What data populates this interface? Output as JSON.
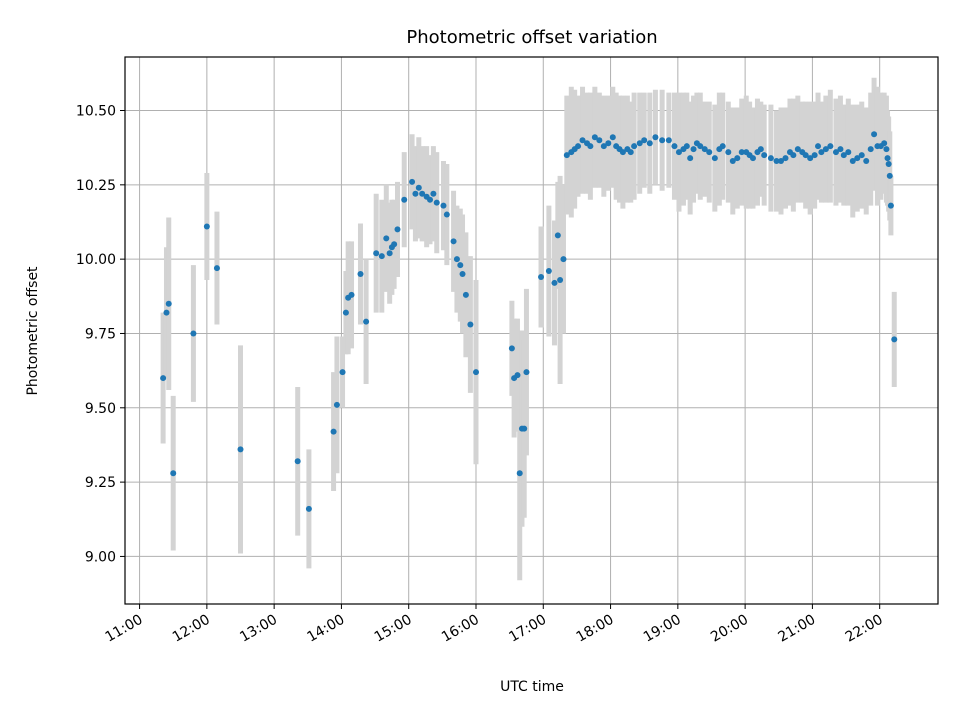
{
  "chart_data": {
    "type": "scatter",
    "title": "Photometric offset variation",
    "xlabel": "UTC time",
    "ylabel": "Photometric offset",
    "xlim": [
      "10:47",
      "22:52"
    ],
    "ylim": [
      8.84,
      10.68
    ],
    "x_ticks": [
      "11:00",
      "12:00",
      "13:00",
      "14:00",
      "15:00",
      "16:00",
      "17:00",
      "18:00",
      "19:00",
      "20:00",
      "21:00",
      "22:00"
    ],
    "y_ticks": [
      "9.00",
      "9.25",
      "9.50",
      "9.75",
      "10.00",
      "10.25",
      "10.50"
    ],
    "grid": true,
    "marker_color": "#1f77b4",
    "errorbar_color": "#d3d3d3",
    "x": [
      "11:21",
      "11:24",
      "11:26",
      "11:30",
      "11:48",
      "12:00",
      "12:09",
      "12:30",
      "13:21",
      "13:31",
      "13:53",
      "13:56",
      "14:01",
      "14:04",
      "14:06",
      "14:09",
      "14:17",
      "14:22",
      "14:31",
      "14:36",
      "14:40",
      "14:43",
      "14:45",
      "14:47",
      "14:50",
      "14:56",
      "15:03",
      "15:06",
      "15:09",
      "15:12",
      "15:16",
      "15:19",
      "15:22",
      "15:25",
      "15:31",
      "15:34",
      "15:40",
      "15:43",
      "15:46",
      "15:48",
      "15:51",
      "15:55",
      "16:00",
      "16:32",
      "16:34",
      "16:37",
      "16:39",
      "16:41",
      "16:43",
      "16:45",
      "16:58",
      "17:05",
      "17:10",
      "17:13",
      "17:15",
      "17:18",
      "17:21",
      "17:25",
      "17:28",
      "17:31",
      "17:35",
      "17:39",
      "17:42",
      "17:46",
      "17:50",
      "17:54",
      "17:58",
      "18:02",
      "18:05",
      "18:08",
      "18:11",
      "18:15",
      "18:18",
      "18:21",
      "18:26",
      "18:30",
      "18:35",
      "18:40",
      "18:46",
      "18:52",
      "18:57",
      "19:01",
      "19:05",
      "19:08",
      "19:11",
      "19:14",
      "19:17",
      "19:20",
      "19:24",
      "19:28",
      "19:33",
      "19:37",
      "19:40",
      "19:45",
      "19:49",
      "19:53",
      "19:57",
      "20:01",
      "20:04",
      "20:07",
      "20:11",
      "20:14",
      "20:17",
      "20:23",
      "20:28",
      "20:32",
      "20:36",
      "20:40",
      "20:43",
      "20:47",
      "20:51",
      "20:54",
      "20:58",
      "21:02",
      "21:05",
      "21:08",
      "21:12",
      "21:16",
      "21:21",
      "21:25",
      "21:28",
      "21:32",
      "21:36",
      "21:40",
      "21:44",
      "21:48",
      "21:52",
      "21:55",
      "21:58",
      "22:01",
      "22:04",
      "22:06",
      "22:07",
      "22:08",
      "22:09",
      "22:10",
      "22:13"
    ],
    "values": [
      9.6,
      9.82,
      9.85,
      9.28,
      9.75,
      10.11,
      9.97,
      9.36,
      9.32,
      9.16,
      9.42,
      9.51,
      9.62,
      9.82,
      9.87,
      9.88,
      9.95,
      9.79,
      10.02,
      10.01,
      10.07,
      10.02,
      10.04,
      10.05,
      10.1,
      10.2,
      10.26,
      10.22,
      10.24,
      10.22,
      10.21,
      10.2,
      10.22,
      10.19,
      10.18,
      10.15,
      10.06,
      10.0,
      9.98,
      9.95,
      9.88,
      9.78,
      9.62,
      9.7,
      9.6,
      9.61,
      9.28,
      9.43,
      9.43,
      9.62,
      9.94,
      9.96,
      9.92,
      10.08,
      9.93,
      10.0,
      10.35,
      10.36,
      10.37,
      10.38,
      10.4,
      10.39,
      10.38,
      10.41,
      10.4,
      10.38,
      10.39,
      10.41,
      10.38,
      10.37,
      10.36,
      10.37,
      10.36,
      10.38,
      10.39,
      10.4,
      10.39,
      10.41,
      10.4,
      10.4,
      10.38,
      10.36,
      10.37,
      10.38,
      10.34,
      10.37,
      10.39,
      10.38,
      10.37,
      10.36,
      10.34,
      10.37,
      10.38,
      10.36,
      10.33,
      10.34,
      10.36,
      10.36,
      10.35,
      10.34,
      10.36,
      10.37,
      10.35,
      10.34,
      10.33,
      10.33,
      10.34,
      10.36,
      10.35,
      10.37,
      10.36,
      10.35,
      10.34,
      10.35,
      10.38,
      10.36,
      10.37,
      10.38,
      10.36,
      10.37,
      10.35,
      10.36,
      10.33,
      10.34,
      10.35,
      10.33,
      10.37,
      10.42,
      10.38,
      10.38,
      10.39,
      10.37,
      10.34,
      10.32,
      10.28,
      10.18,
      9.73
    ],
    "errors": [
      0.22,
      0.22,
      0.29,
      0.26,
      0.23,
      0.18,
      0.19,
      0.35,
      0.25,
      0.2,
      0.2,
      0.23,
      0.12,
      0.14,
      0.19,
      0.18,
      0.17,
      0.21,
      0.2,
      0.19,
      0.18,
      0.17,
      0.16,
      0.15,
      0.16,
      0.16,
      0.16,
      0.16,
      0.17,
      0.16,
      0.17,
      0.15,
      0.16,
      0.17,
      0.15,
      0.17,
      0.17,
      0.18,
      0.19,
      0.2,
      0.21,
      0.23,
      0.31,
      0.16,
      0.2,
      0.19,
      0.36,
      0.33,
      0.3,
      0.28,
      0.17,
      0.22,
      0.21,
      0.18,
      0.35,
      0.25,
      0.2,
      0.22,
      0.2,
      0.17,
      0.18,
      0.17,
      0.18,
      0.17,
      0.16,
      0.17,
      0.16,
      0.17,
      0.18,
      0.18,
      0.19,
      0.18,
      0.17,
      0.18,
      0.17,
      0.16,
      0.17,
      0.16,
      0.17,
      0.16,
      0.18,
      0.2,
      0.19,
      0.18,
      0.19,
      0.18,
      0.17,
      0.18,
      0.16,
      0.17,
      0.18,
      0.19,
      0.18,
      0.17,
      0.18,
      0.17,
      0.18,
      0.19,
      0.18,
      0.17,
      0.18,
      0.16,
      0.17,
      0.18,
      0.17,
      0.18,
      0.17,
      0.18,
      0.19,
      0.18,
      0.17,
      0.18,
      0.19,
      0.18,
      0.18,
      0.17,
      0.18,
      0.19,
      0.18,
      0.18,
      0.17,
      0.18,
      0.19,
      0.18,
      0.18,
      0.18,
      0.19,
      0.19,
      0.2,
      0.18,
      0.17,
      0.18,
      0.16,
      0.16,
      0.15,
      0.1,
      0.16
    ]
  }
}
